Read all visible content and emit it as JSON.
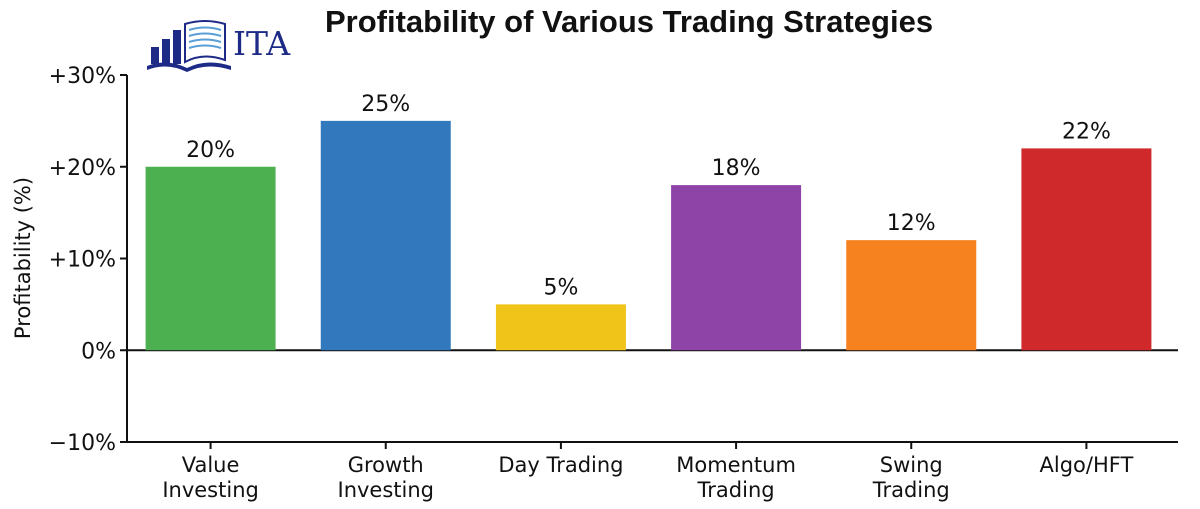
{
  "logo": {
    "text": "ITA"
  },
  "chart_data": {
    "type": "bar",
    "title": "Profitability of Various Trading Strategies",
    "xlabel": "",
    "ylabel": "Profitability (%)",
    "ylim": [
      -10,
      30
    ],
    "yticks": [
      {
        "value": 30,
        "label": "+30%"
      },
      {
        "value": 20,
        "label": "+20%"
      },
      {
        "value": 10,
        "label": "+10%"
      },
      {
        "value": 0,
        "label": "0%"
      },
      {
        "value": -10,
        "label": "−10%"
      }
    ],
    "categories": [
      [
        "Value",
        "Investing"
      ],
      [
        "Growth",
        "Investing"
      ],
      [
        "Day Trading"
      ],
      [
        "Momentum",
        "Trading"
      ],
      [
        "Swing",
        "Trading"
      ],
      [
        "Algo/HFT"
      ]
    ],
    "values": [
      20,
      25,
      5,
      18,
      12,
      22
    ],
    "data_labels": [
      "20%",
      "25%",
      "5%",
      "18%",
      "12%",
      "22%"
    ],
    "colors": [
      "#4caf50",
      "#3278bd",
      "#f0c419",
      "#8e44a6",
      "#f5821f",
      "#d0292b"
    ],
    "grid": false,
    "legend": "none"
  }
}
